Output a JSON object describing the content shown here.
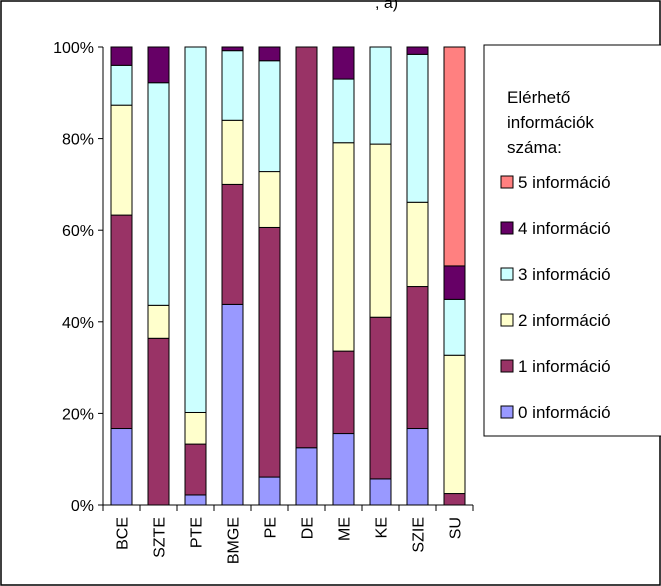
{
  "chart_data": {
    "type": "bar",
    "stacked": true,
    "normalized": true,
    "title_fragment": ", a)",
    "categories": [
      "BCE",
      "SZTE",
      "PTE",
      "BMGE",
      "PE",
      "DE",
      "ME",
      "KE",
      "SZIE",
      "SU"
    ],
    "y_ticks": [
      "0%",
      "20%",
      "40%",
      "60%",
      "80%",
      "100%"
    ],
    "ylim": [
      0,
      100
    ],
    "legend": {
      "title_lines": [
        "Elérhető",
        "információk",
        "száma:"
      ],
      "placement": "right"
    },
    "series": [
      {
        "name": "0 információ",
        "color": "#9999ff",
        "values": [
          16.7,
          0,
          2.2,
          43.8,
          6.1,
          12.5,
          15.6,
          5.7,
          16.7,
          0
        ]
      },
      {
        "name": "1 információ",
        "color": "#993366",
        "values": [
          46.6,
          36.4,
          11.1,
          26.2,
          54.5,
          87.5,
          18.0,
          35.3,
          31.0,
          2.5
        ]
      },
      {
        "name": "2 információ",
        "color": "#ffffcc",
        "values": [
          24.0,
          7.2,
          6.9,
          14.0,
          12.2,
          0,
          45.5,
          37.8,
          18.4,
          30.2
        ]
      },
      {
        "name": "3 információ",
        "color": "#ccffff",
        "values": [
          8.7,
          48.6,
          79.8,
          15.2,
          24.2,
          0,
          13.9,
          21.2,
          32.3,
          12.2
        ]
      },
      {
        "name": "4 információ",
        "color": "#660066",
        "values": [
          4.0,
          7.8,
          0,
          0.8,
          3.0,
          0,
          7.0,
          0,
          1.6,
          7.3
        ]
      },
      {
        "name": "5 információ",
        "color": "#ff8080",
        "values": [
          0,
          0,
          0,
          0,
          0,
          0,
          0,
          0,
          0,
          47.8
        ]
      }
    ]
  }
}
